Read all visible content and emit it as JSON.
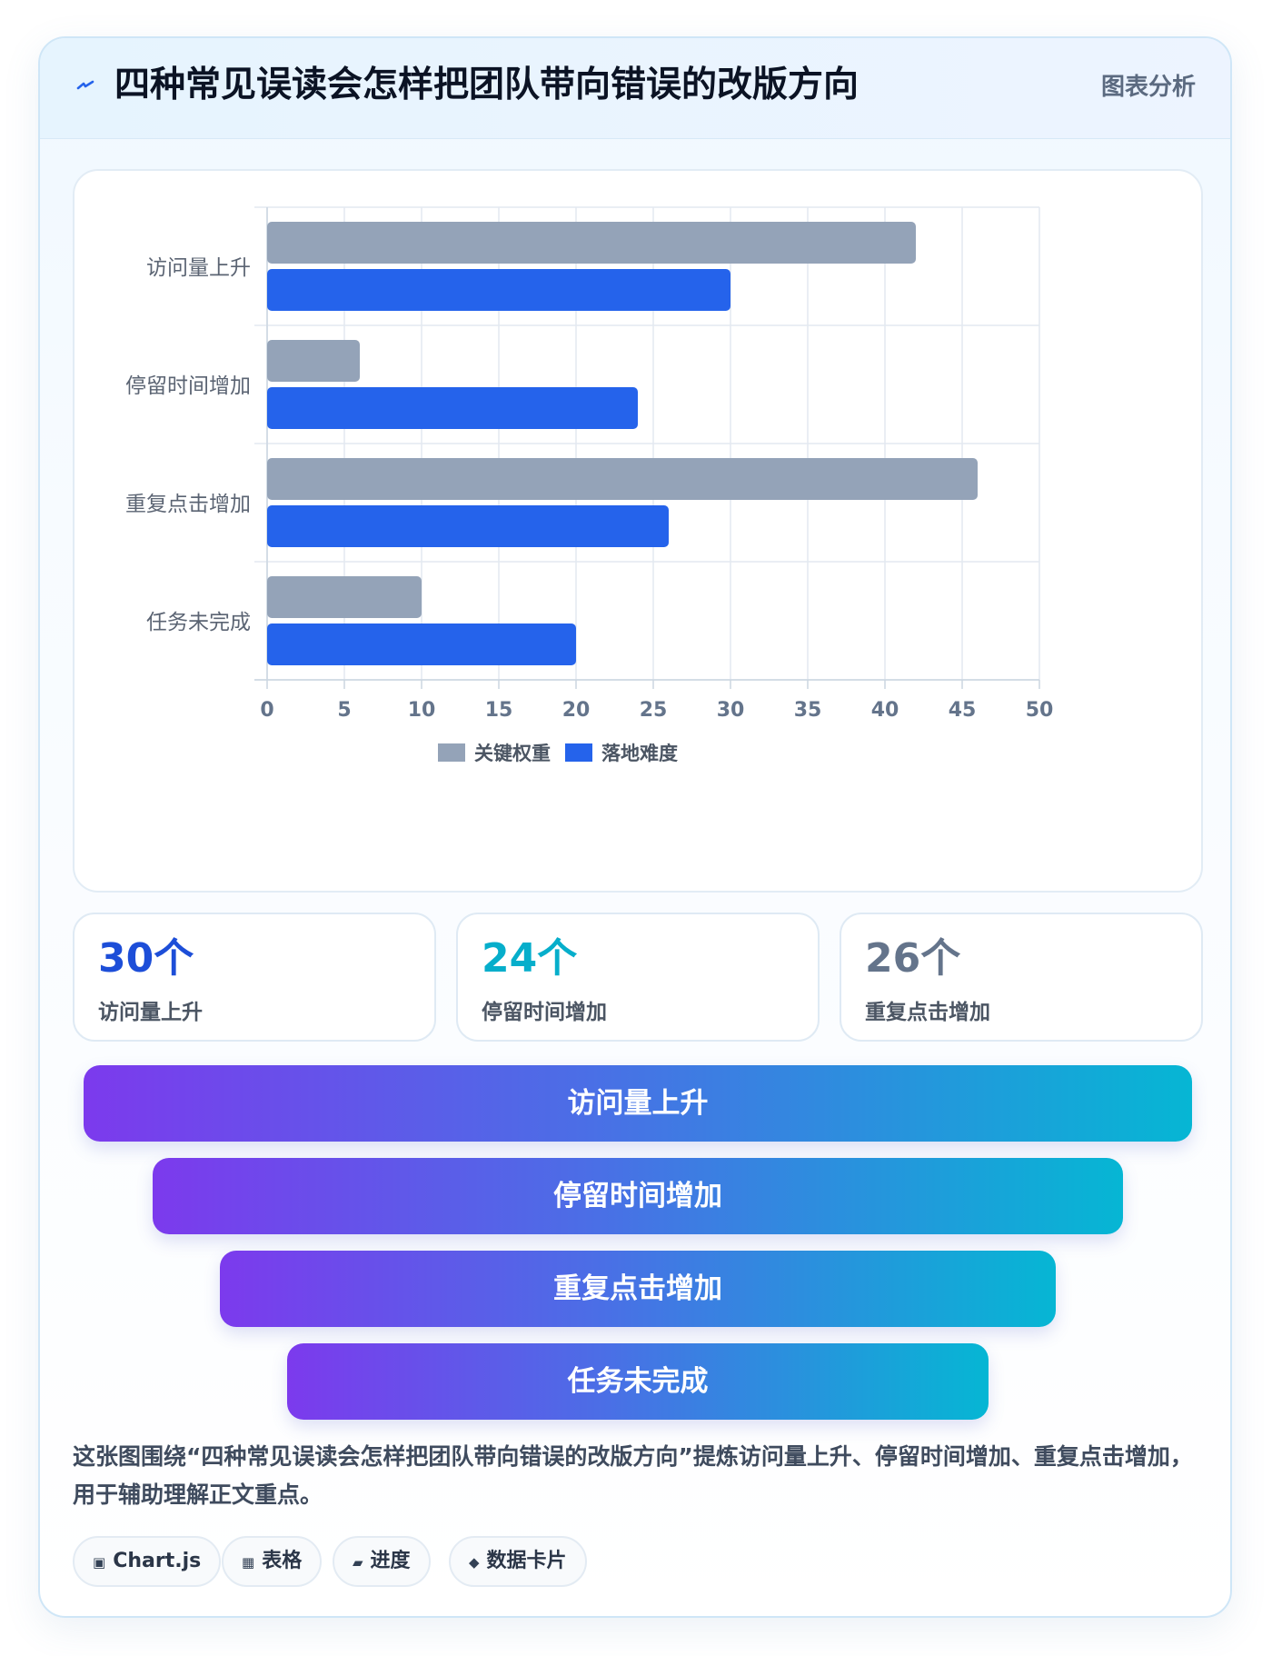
{
  "header": {
    "title": "四种常见误读会怎样把团队带向错误的改版方向",
    "tag": "图表分析",
    "icon": "lightning-icon"
  },
  "chart_data": {
    "type": "bar",
    "orientation": "horizontal",
    "categories": [
      "访问量上升",
      "停留时间增加",
      "重复点击增加",
      "任务未完成"
    ],
    "series": [
      {
        "name": "关键权重",
        "color": "#94a3b8",
        "values": [
          42,
          6,
          46,
          10
        ]
      },
      {
        "name": "落地难度",
        "color": "#2563eb",
        "values": [
          30,
          24,
          26,
          20
        ]
      }
    ],
    "xlim": [
      0,
      50
    ],
    "xticks": [
      0,
      5,
      10,
      15,
      20,
      25,
      30,
      35,
      40,
      45,
      50
    ],
    "grid": true,
    "legend_position": "bottom"
  },
  "stats": [
    {
      "value": "30个",
      "label": "访问量上升",
      "color": "#1d4ed8"
    },
    {
      "value": "24个",
      "label": "停留时间增加",
      "color": "#06aecb"
    },
    {
      "value": "26个",
      "label": "重复点击增加",
      "color": "#64748b"
    }
  ],
  "funnel": [
    "访问量上升",
    "停留时间增加",
    "重复点击增加",
    "任务未完成"
  ],
  "note": "这张图围绕“四种常见误读会怎样把团队带向错误的改版方向”提炼访问量上升、停留时间增加、重复点击增加，用于辅助理解正文重点。",
  "chips": [
    {
      "icon": "▣",
      "icon_name": "chart-icon",
      "label": "Chart.js"
    },
    {
      "icon": "▦",
      "icon_name": "table-icon",
      "label": "表格"
    },
    {
      "icon": "▰",
      "icon_name": "progress-icon",
      "label": "进度"
    },
    {
      "icon": "◆",
      "icon_name": "data-card-icon",
      "label": "数据卡片"
    }
  ]
}
